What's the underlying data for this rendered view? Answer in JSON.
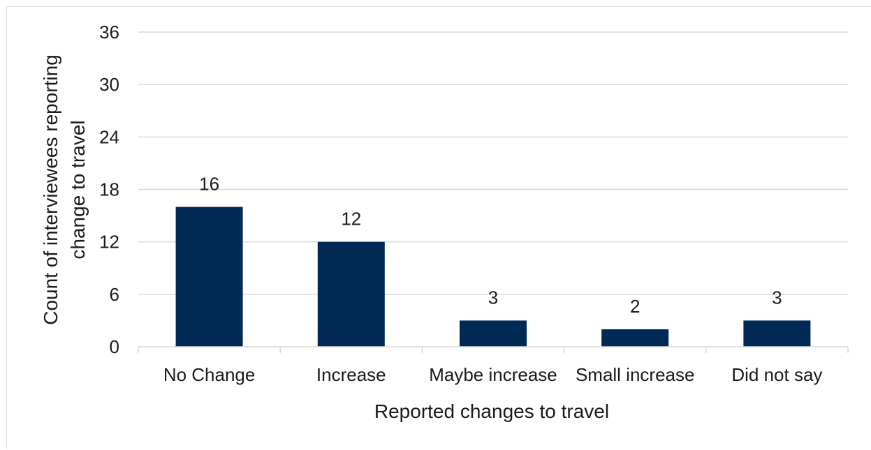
{
  "chart_data": {
    "type": "bar",
    "categories": [
      "No Change",
      "Increase",
      "Maybe increase",
      "Small increase",
      "Did not say"
    ],
    "values": [
      16,
      12,
      3,
      2,
      3
    ],
    "data_labels": [
      "16",
      "12",
      "3",
      "2",
      "3"
    ],
    "yticks": [
      "0",
      "6",
      "12",
      "18",
      "24",
      "30",
      "36"
    ],
    "ylim": [
      0,
      36
    ],
    "xlabel": "Reported changes to travel",
    "ylabel_lines": [
      "Count of interviewees reporting",
      "change  to travel"
    ],
    "grid": true,
    "legend": "none",
    "bar_color": "#002a54",
    "grid_color": "#d9d9d9"
  }
}
